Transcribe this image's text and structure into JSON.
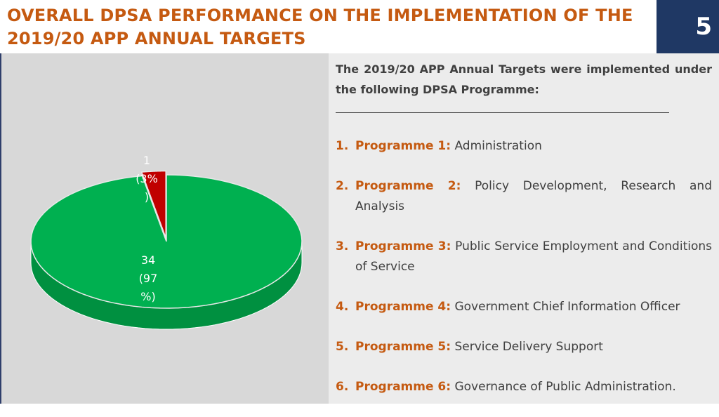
{
  "title": "OVERALL DPSA PERFORMANCE ON THE IMPLEMENTATION OF THE 2019/20 APP ANNUAL TARGETS",
  "slide_number": "5",
  "intro": "The 2019/20 APP Annual Targets were implemented under the following DPSA Programme:",
  "programmes": [
    {
      "num": "1.",
      "name": "Programme 1:",
      "desc": "Administration"
    },
    {
      "num": "2.",
      "name": "Programme 2:",
      "desc": "Policy Development, Research and Analysis"
    },
    {
      "num": "3.",
      "name": "Programme 3:",
      "desc": "Public Service Employment and Conditions of Service"
    },
    {
      "num": "4.",
      "name": "Programme 4:",
      "desc": "Government Chief Information Officer"
    },
    {
      "num": "5.",
      "name": "Programme 5:",
      "desc": "Service Delivery Support"
    },
    {
      "num": "6.",
      "name": "Programme 6:",
      "desc": "Governance of Public Administration."
    }
  ],
  "colors": {
    "accent": "#c55a11",
    "navy": "#1f3864",
    "achieved": "#00b050",
    "not_achieved": "#c00000"
  },
  "chart_data": {
    "type": "pie",
    "style": "3d",
    "slices": [
      {
        "value": 34,
        "percent": 97,
        "label_lines": [
          "34",
          "(97",
          "%)"
        ],
        "color": "#00b050",
        "dark": "#009040"
      },
      {
        "value": 1,
        "percent": 3,
        "label_lines": [
          "1",
          "(3%",
          ")"
        ],
        "color": "#c00000",
        "dark": "#900000"
      }
    ]
  }
}
